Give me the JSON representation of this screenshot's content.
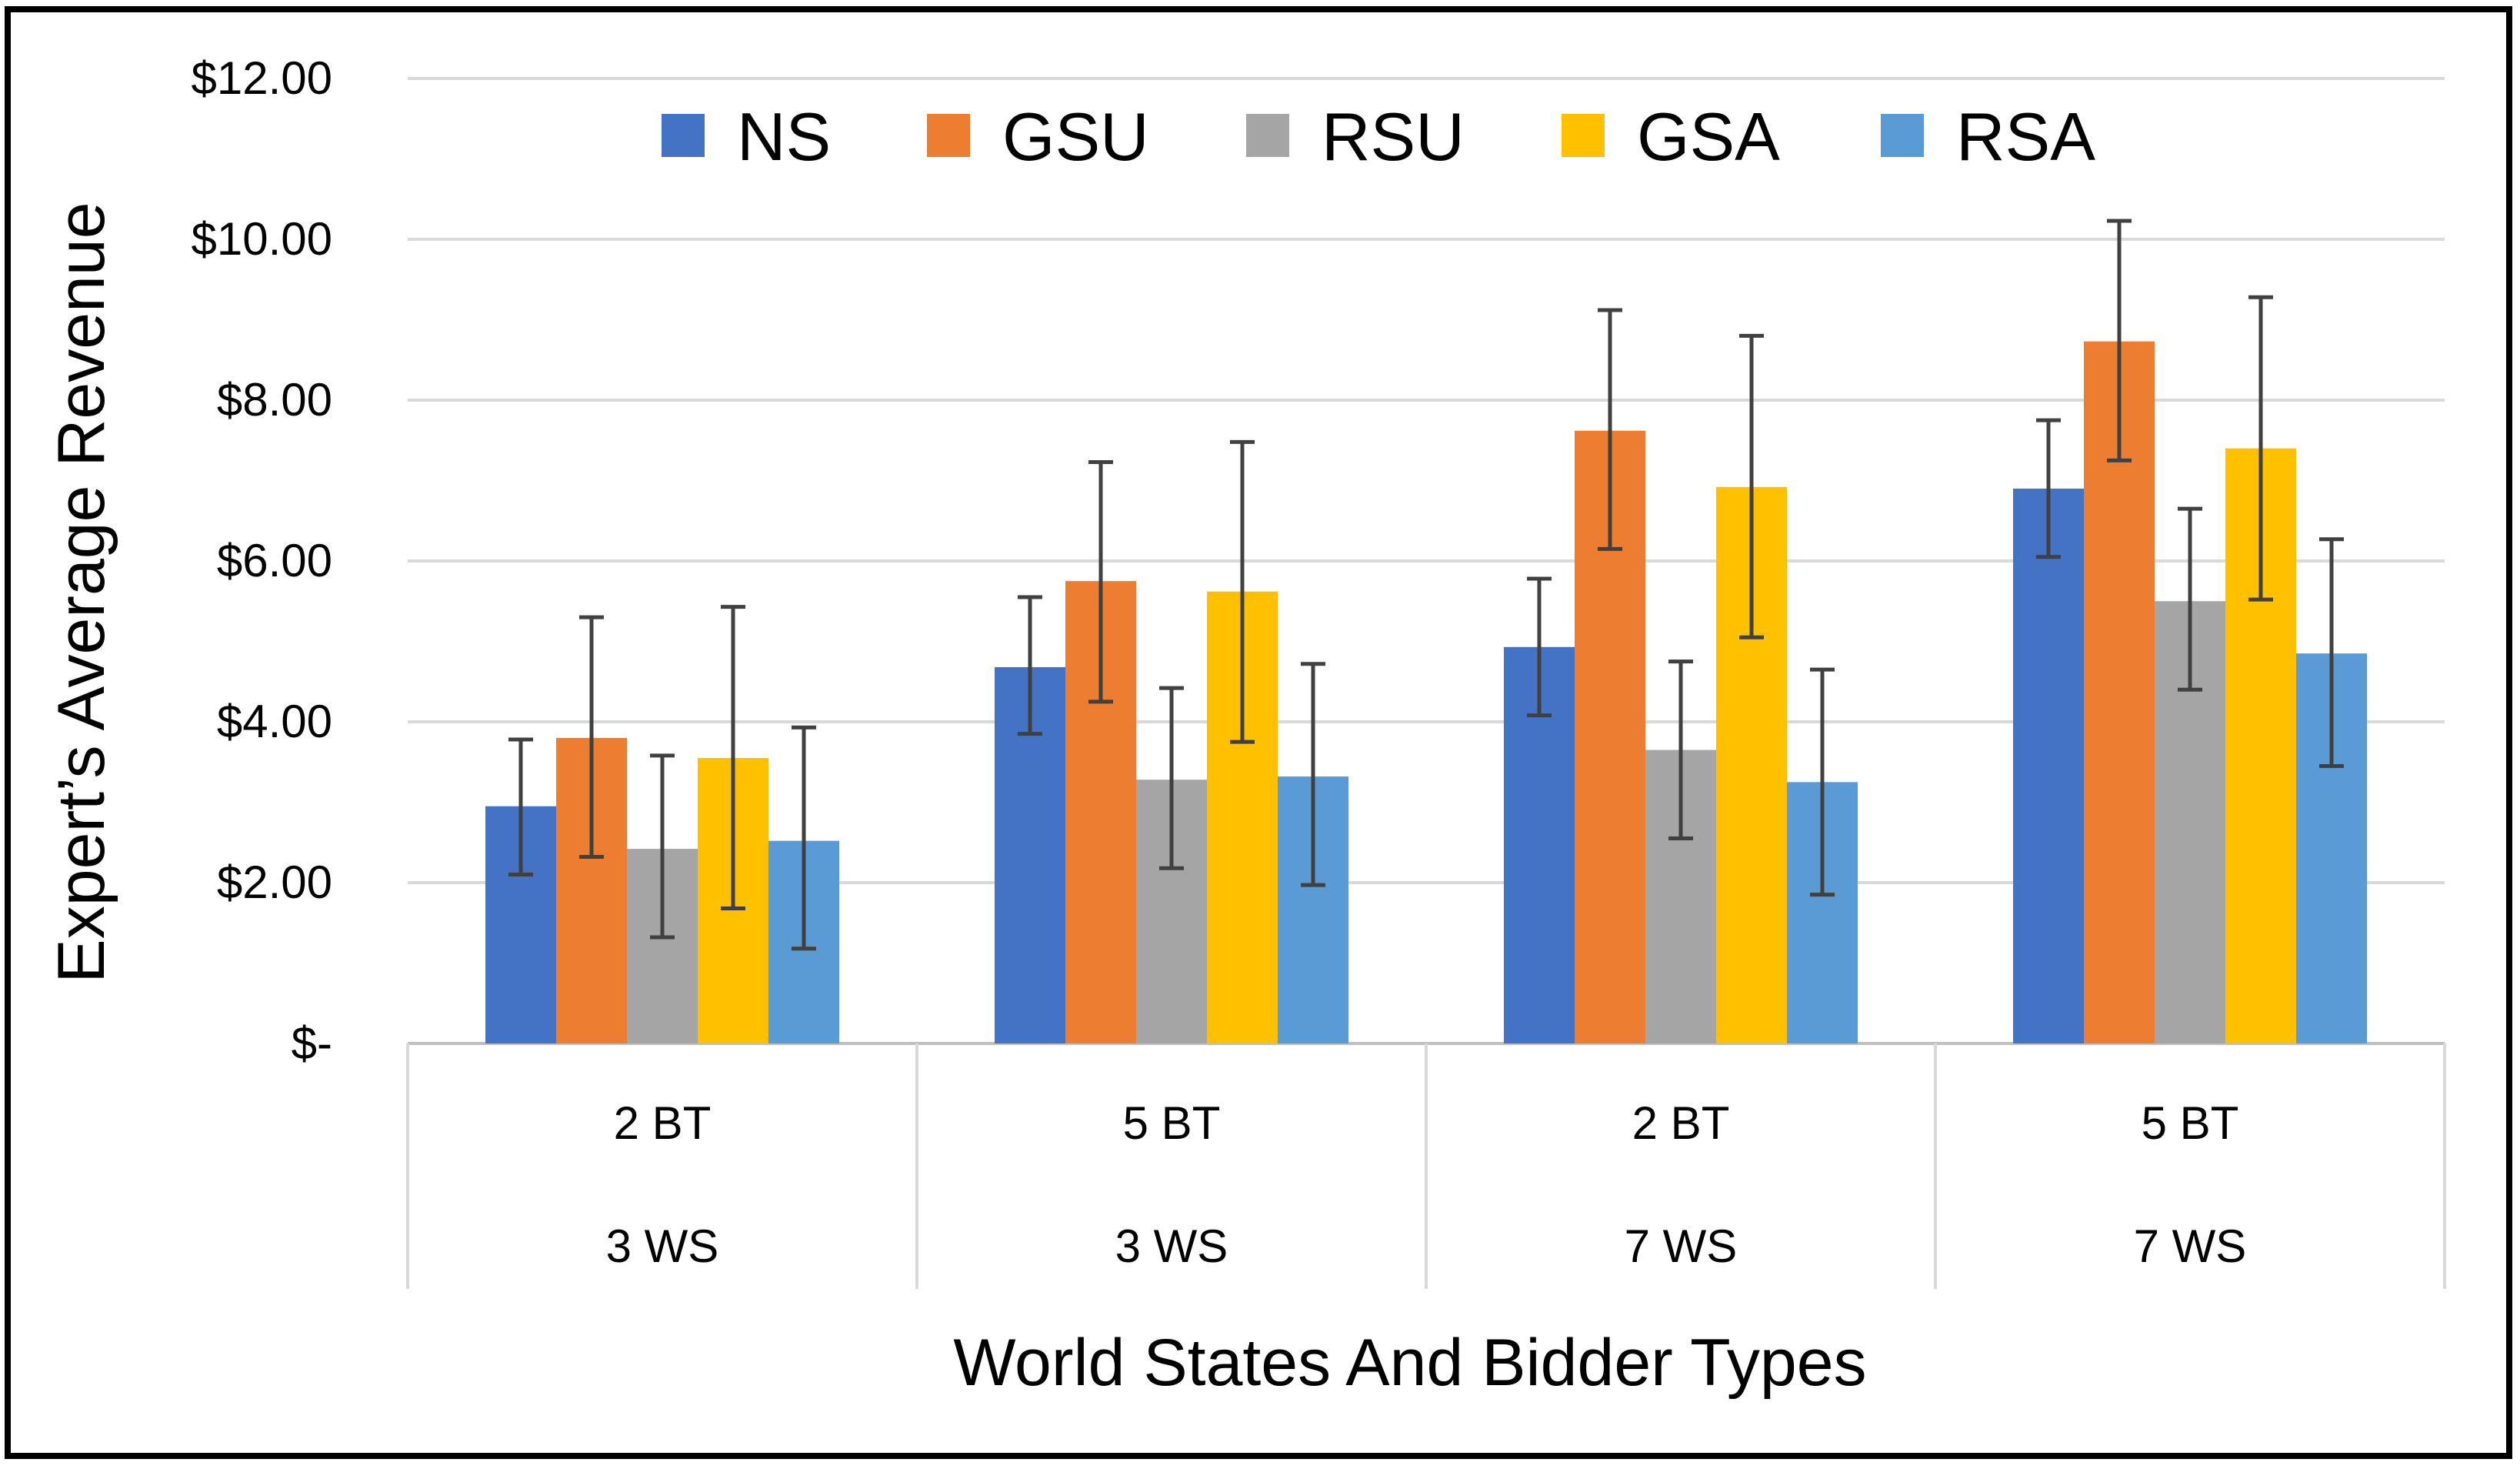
{
  "chart_data": {
    "type": "bar",
    "ylabel": "Expert’s Average Revenue",
    "xlabel": "World States And Bidder Types",
    "ylim": [
      0,
      12
    ],
    "ytick_values": [
      0,
      2,
      4,
      6,
      8,
      10,
      12
    ],
    "ytick_labels": [
      "$-",
      "$2.00",
      "$4.00",
      "$6.00",
      "$8.00",
      "$10.00",
      "$12.00"
    ],
    "categories": [
      {
        "bt": "2 BT",
        "ws": "3 WS"
      },
      {
        "bt": "5 BT",
        "ws": "3 WS"
      },
      {
        "bt": "2 BT",
        "ws": "7 WS"
      },
      {
        "bt": "5 BT",
        "ws": "7 WS"
      }
    ],
    "series": [
      {
        "name": "NS",
        "color": "#4472C4",
        "values": [
          2.95,
          4.68,
          4.93,
          6.9
        ],
        "err_low": [
          2.1,
          3.85,
          4.08,
          6.05
        ],
        "err_high": [
          3.78,
          5.55,
          5.78,
          7.75
        ]
      },
      {
        "name": "GSU",
        "color": "#ED7D31",
        "values": [
          3.8,
          5.75,
          7.62,
          8.73
        ],
        "err_low": [
          2.32,
          4.25,
          6.15,
          7.25
        ],
        "err_high": [
          5.3,
          7.23,
          9.12,
          10.23
        ]
      },
      {
        "name": "RSU",
        "color": "#A5A5A5",
        "values": [
          2.42,
          3.28,
          3.65,
          5.5
        ],
        "err_low": [
          1.32,
          2.18,
          2.55,
          4.4
        ],
        "err_high": [
          3.58,
          4.42,
          4.75,
          6.65
        ]
      },
      {
        "name": "GSA",
        "color": "#FFC000",
        "values": [
          3.55,
          5.62,
          6.92,
          7.4
        ],
        "err_low": [
          1.68,
          3.75,
          5.05,
          5.52
        ],
        "err_high": [
          5.43,
          7.48,
          8.8,
          9.28
        ]
      },
      {
        "name": "RSA",
        "color": "#5B9BD5",
        "values": [
          2.52,
          3.32,
          3.25,
          4.85
        ],
        "err_low": [
          1.18,
          1.97,
          1.85,
          3.45
        ],
        "err_high": [
          3.93,
          4.72,
          4.65,
          6.27
        ]
      }
    ],
    "legend_position": "top-center",
    "grid": true
  }
}
